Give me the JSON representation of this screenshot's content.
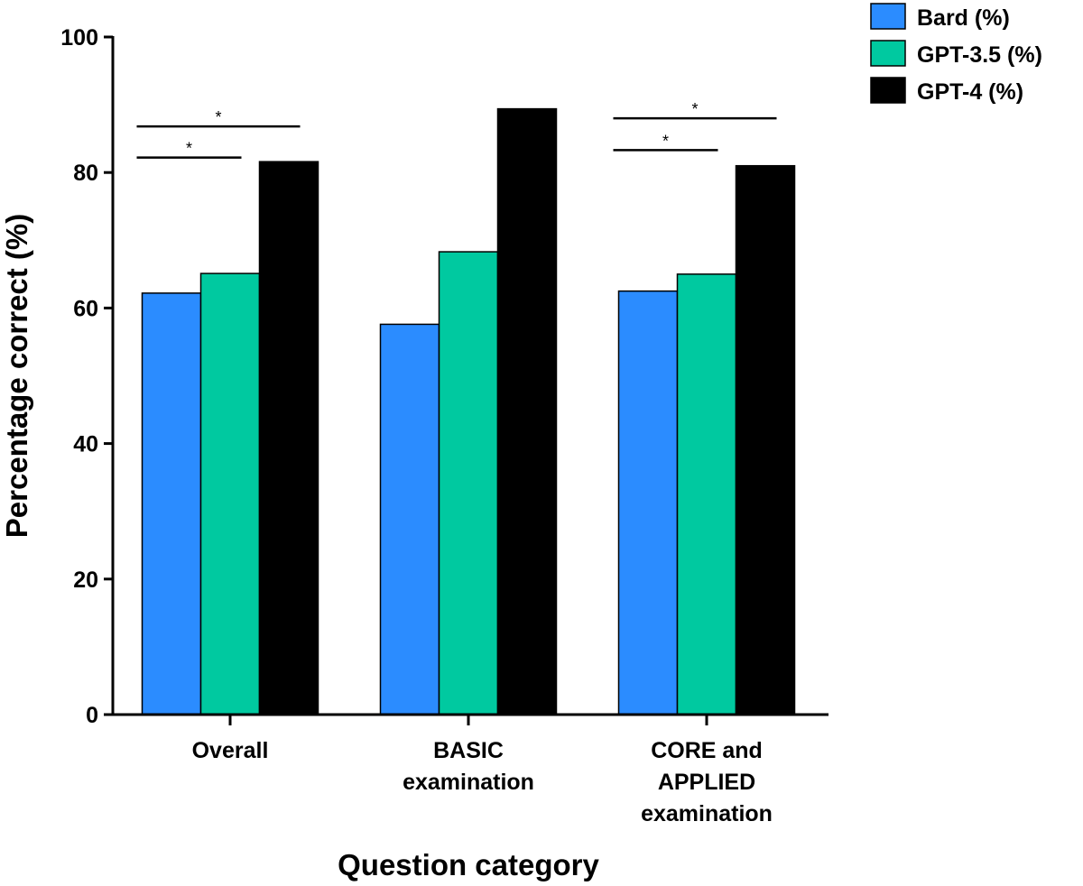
{
  "chart_data": {
    "type": "bar",
    "categories": [
      [
        "Overall"
      ],
      [
        "BASIC",
        "examination"
      ],
      [
        "CORE and",
        "APPLIED",
        "examination"
      ]
    ],
    "series": [
      {
        "name": "Bard (%)",
        "color": "#2b8cff",
        "values": [
          62.2,
          57.6,
          62.5
        ]
      },
      {
        "name": "GPT-3.5 (%)",
        "color": "#00c9a0",
        "values": [
          65.1,
          68.3,
          65.0
        ]
      },
      {
        "name": "GPT-4 (%)",
        "color": "#000000",
        "values": [
          81.6,
          89.4,
          81.0
        ]
      }
    ],
    "xlabel": "Question category",
    "ylabel": "Percentage correct (%)",
    "ylim": [
      0,
      100
    ],
    "yticks": [
      0,
      20,
      40,
      60,
      80,
      100
    ],
    "grid": false,
    "legend": "top-right",
    "significance": [
      {
        "category": 0,
        "from_series": 0,
        "to_series": 2,
        "label": "*",
        "level": 86.8
      },
      {
        "category": 0,
        "from_series": 0,
        "to_series": 1,
        "label": "*",
        "level": 82.2
      },
      {
        "category": 2,
        "from_series": 0,
        "to_series": 2,
        "label": "*",
        "level": 88.0
      },
      {
        "category": 2,
        "from_series": 0,
        "to_series": 1,
        "label": "*",
        "level": 83.3
      }
    ]
  }
}
